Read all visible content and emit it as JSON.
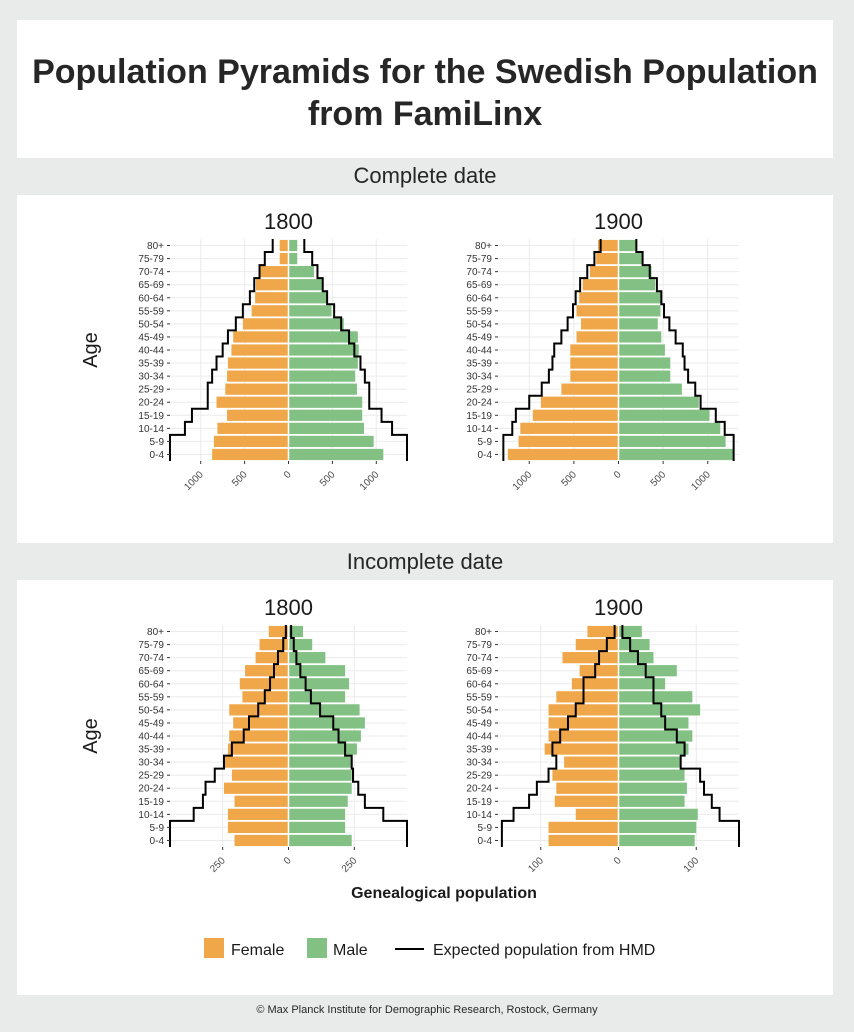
{
  "title": {
    "line1": "Population Pyramids for the Swedish Population",
    "line2": "from FamiLinx"
  },
  "strips": {
    "complete": "Complete date",
    "incomplete": "Incomplete date"
  },
  "footer": "© Max Planck Institute for Demographic Research, Rostock, Germany",
  "colors": {
    "female": "#f0a74a",
    "male": "#82c183",
    "expected": "#000000"
  },
  "chart_data": [
    {
      "type": "bar",
      "panel": "Complete date",
      "title": "1800",
      "ylabel": "Age",
      "xlim": [
        -1350,
        1350
      ],
      "x_ticks": [
        -1000,
        -500,
        0,
        500,
        1000
      ],
      "x_tick_labels": [
        "1000",
        "500",
        "0",
        "500",
        "1000"
      ],
      "categories": [
        "0-4",
        "5-9",
        "10-14",
        "15-19",
        "20-24",
        "25-29",
        "30-34",
        "35-39",
        "40-44",
        "45-49",
        "50-54",
        "55-59",
        "60-64",
        "65-69",
        "70-74",
        "75-79",
        "80+"
      ],
      "series": [
        {
          "name": "Female",
          "values": [
            870,
            850,
            810,
            700,
            820,
            720,
            700,
            690,
            650,
            630,
            520,
            420,
            380,
            370,
            330,
            100,
            100
          ]
        },
        {
          "name": "Male",
          "values": [
            1080,
            970,
            860,
            840,
            840,
            780,
            760,
            790,
            800,
            790,
            630,
            490,
            430,
            390,
            290,
            100,
            100
          ]
        },
        {
          "name": "Expected population from HMD",
          "female": [
            1350,
            1350,
            1180,
            1100,
            920,
            920,
            870,
            820,
            750,
            690,
            600,
            520,
            440,
            390,
            330,
            270,
            180
          ],
          "male": [
            1350,
            1350,
            1180,
            1060,
            920,
            920,
            870,
            820,
            750,
            690,
            600,
            520,
            440,
            390,
            330,
            270,
            180
          ]
        }
      ]
    },
    {
      "type": "bar",
      "panel": "Complete date",
      "title": "1900",
      "ylabel": "",
      "xlim": [
        -1350,
        1350
      ],
      "x_ticks": [
        -1000,
        -500,
        0,
        500,
        1000
      ],
      "x_tick_labels": [
        "1000",
        "500",
        "0",
        "500",
        "1000"
      ],
      "categories": [
        "0-4",
        "5-9",
        "10-14",
        "15-19",
        "20-24",
        "25-29",
        "30-34",
        "35-39",
        "40-44",
        "45-49",
        "50-54",
        "55-59",
        "60-64",
        "65-69",
        "70-74",
        "75-79",
        "80+"
      ],
      "series": [
        {
          "name": "Female",
          "values": [
            1240,
            1120,
            1100,
            960,
            870,
            640,
            540,
            540,
            540,
            470,
            420,
            470,
            440,
            400,
            320,
            250,
            230
          ]
        },
        {
          "name": "Male",
          "values": [
            1290,
            1200,
            1140,
            1020,
            900,
            710,
            580,
            580,
            520,
            480,
            440,
            470,
            470,
            410,
            370,
            280,
            190
          ]
        },
        {
          "name": "Expected population from HMD",
          "female": [
            1290,
            1290,
            1190,
            1150,
            1000,
            860,
            780,
            740,
            720,
            640,
            570,
            510,
            480,
            430,
            350,
            270,
            200
          ],
          "male": [
            1290,
            1290,
            1190,
            1090,
            920,
            860,
            780,
            740,
            720,
            640,
            570,
            510,
            480,
            430,
            350,
            270,
            200
          ]
        }
      ]
    },
    {
      "type": "bar",
      "panel": "Incomplete date",
      "title": "1800",
      "ylabel": "Age",
      "xlabel": "Genealogical population",
      "xlim": [
        -450,
        450
      ],
      "x_ticks": [
        -250,
        0,
        250
      ],
      "x_tick_labels": [
        "250",
        "0",
        "250"
      ],
      "categories": [
        "0-4",
        "5-9",
        "10-14",
        "15-19",
        "20-24",
        "25-29",
        "30-34",
        "35-39",
        "40-44",
        "45-49",
        "50-54",
        "55-59",
        "60-64",
        "65-69",
        "70-74",
        "75-79",
        "80+"
      ],
      "series": [
        {
          "name": "Female",
          "values": [
            205,
            230,
            230,
            205,
            245,
            215,
            245,
            230,
            225,
            210,
            225,
            175,
            185,
            165,
            125,
            110,
            75
          ]
        },
        {
          "name": "Male",
          "values": [
            240,
            215,
            215,
            225,
            240,
            240,
            240,
            260,
            275,
            290,
            270,
            215,
            230,
            215,
            140,
            90,
            55
          ]
        },
        {
          "name": "Expected population from HMD",
          "female": [
            450,
            450,
            360,
            325,
            315,
            280,
            245,
            215,
            170,
            150,
            115,
            90,
            70,
            55,
            40,
            20,
            10
          ],
          "male": [
            450,
            450,
            360,
            290,
            265,
            245,
            240,
            215,
            190,
            170,
            120,
            85,
            65,
            45,
            30,
            20,
            10
          ]
        }
      ]
    },
    {
      "type": "bar",
      "panel": "Incomplete date",
      "title": "1900",
      "ylabel": "",
      "xlim": [
        -155,
        155
      ],
      "x_ticks": [
        -100,
        0,
        100
      ],
      "x_tick_labels": [
        "100",
        "0",
        "100"
      ],
      "categories": [
        "0-4",
        "5-9",
        "10-14",
        "15-19",
        "20-24",
        "25-29",
        "30-34",
        "35-39",
        "40-44",
        "45-49",
        "50-54",
        "55-59",
        "60-64",
        "65-69",
        "70-74",
        "75-79",
        "80+"
      ],
      "series": [
        {
          "name": "Female",
          "values": [
            90,
            90,
            55,
            82,
            80,
            85,
            70,
            95,
            90,
            90,
            90,
            80,
            60,
            50,
            72,
            55,
            40
          ]
        },
        {
          "name": "Male",
          "values": [
            98,
            100,
            102,
            85,
            88,
            85,
            80,
            90,
            95,
            90,
            105,
            95,
            60,
            75,
            45,
            40,
            30
          ]
        },
        {
          "name": "Expected population from HMD",
          "female": [
            150,
            150,
            135,
            115,
            105,
            90,
            80,
            85,
            75,
            65,
            55,
            45,
            45,
            30,
            25,
            15,
            5
          ],
          "male": [
            155,
            155,
            130,
            120,
            110,
            105,
            80,
            85,
            75,
            60,
            55,
            45,
            45,
            35,
            25,
            15,
            5
          ]
        }
      ]
    }
  ],
  "legend": {
    "female_label": "Female",
    "male_label": "Male",
    "expected_label": "Expected population from HMD"
  }
}
